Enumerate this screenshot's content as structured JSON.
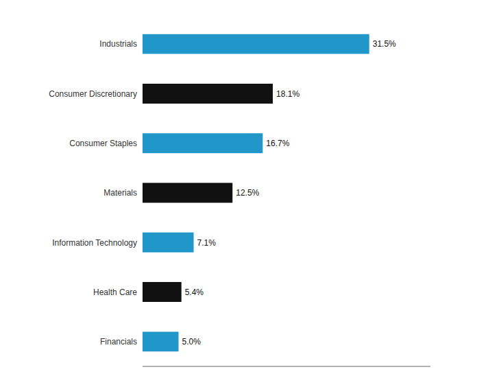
{
  "chart_data": {
    "type": "bar",
    "orientation": "horizontal",
    "categories": [
      "Financials",
      "Health Care",
      "Information Technology",
      "Materials",
      "Consumer Staples",
      "Consumer Discretionary",
      "Industrials"
    ],
    "values": [
      5.0,
      5.4,
      7.1,
      12.5,
      16.7,
      18.1,
      31.5
    ],
    "value_labels": [
      "5.0%",
      "5.4%",
      "7.1%",
      "12.5%",
      "16.7%",
      "18.1%",
      "31.5%"
    ],
    "data_labels": true,
    "colors": [
      "#2196C8",
      "#111111",
      "#2196C8",
      "#111111",
      "#2196C8",
      "#111111",
      "#2196C8"
    ],
    "xlim": [
      0,
      40
    ],
    "tick_labels": "y",
    "grid": false
  }
}
